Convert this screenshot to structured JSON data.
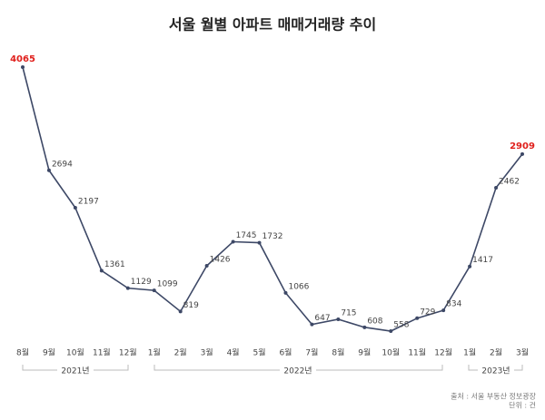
{
  "chart_data": {
    "type": "line",
    "title": "서울 월별 아파트 매매거래량 추이",
    "categories": [
      "8월",
      "9월",
      "10월",
      "11월",
      "12월",
      "1월",
      "2월",
      "3월",
      "4월",
      "5월",
      "6월",
      "7월",
      "8월",
      "9월",
      "10월",
      "11월",
      "12월",
      "1월",
      "2월",
      "3월"
    ],
    "series": [
      {
        "name": "매매거래량",
        "color": "#3d4866",
        "values": [
          4065,
          2694,
          2197,
          1361,
          1129,
          1099,
          819,
          1426,
          1745,
          1732,
          1066,
          647,
          715,
          608,
          558,
          729,
          834,
          1417,
          2462,
          2909
        ]
      }
    ],
    "highlight_indices": [
      0,
      19
    ],
    "highlight_color": "#e0201c",
    "year_labels": [
      "2021년",
      "2022년",
      "2023년"
    ],
    "source": "출처 : 서울 부동산 정보광장",
    "unit": "단위 : 건"
  }
}
